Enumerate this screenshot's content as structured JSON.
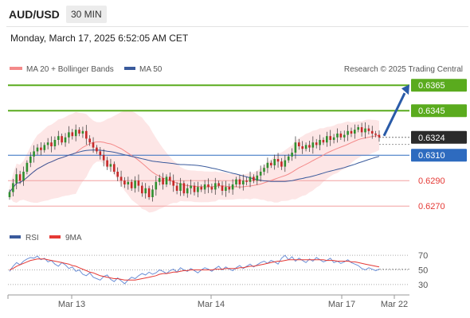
{
  "header": {
    "pair": "AUD/USD",
    "timeframe": "30 MIN",
    "timestamp": "Monday, March 17, 2025 6:52:05 AM CET"
  },
  "legend": {
    "ma20": "MA 20 + Bollinger Bands",
    "ma50": "MA 50",
    "rsi": "RSI",
    "rsi_ma": "9MA"
  },
  "credit": "Research © 2025 Trading Central",
  "colors": {
    "up": "#2f8f2f",
    "down": "#c62828",
    "ma20": "#f48a8a",
    "ma50": "#3a5a9c",
    "band": "#fde2e2",
    "green_line": "#5aab1e",
    "blue_line": "#2e6bbf",
    "red_line": "#f2a0a0",
    "current": "#2b2b2b",
    "arrow": "#2a5ba8"
  },
  "chart_data": {
    "type": "candlestick",
    "x_ticks": [
      "Mar 13",
      "Mar 14",
      "Mar 17",
      "Mar 22"
    ],
    "ylim": [
      0.6257,
      0.6372
    ],
    "levels": [
      {
        "value": 0.6365,
        "label": "0.6365",
        "kind": "resistance"
      },
      {
        "value": 0.6345,
        "label": "0.6345",
        "kind": "resistance"
      },
      {
        "value": 0.6324,
        "label": "0.6324",
        "kind": "current"
      },
      {
        "value": 0.631,
        "label": "0.6310",
        "kind": "pivot"
      },
      {
        "value": 0.629,
        "label": "0.6290",
        "kind": "support"
      },
      {
        "value": 0.627,
        "label": "0.6270",
        "kind": "support"
      }
    ],
    "close": [
      0.6281,
      0.6288,
      0.6295,
      0.629,
      0.6297,
      0.6304,
      0.6309,
      0.6313,
      0.6316,
      0.6314,
      0.6318,
      0.632,
      0.6317,
      0.6322,
      0.6325,
      0.632,
      0.6324,
      0.6328,
      0.6325,
      0.633,
      0.6327,
      0.6329,
      0.6323,
      0.632,
      0.6316,
      0.6313,
      0.631,
      0.6306,
      0.6301,
      0.6303,
      0.6297,
      0.6293,
      0.629,
      0.6287,
      0.6289,
      0.6284,
      0.629,
      0.6286,
      0.628,
      0.6284,
      0.6277,
      0.6283,
      0.6289,
      0.6292,
      0.6287,
      0.6293,
      0.629,
      0.6286,
      0.6282,
      0.6288,
      0.628,
      0.6284,
      0.6286,
      0.6281,
      0.6285,
      0.6283,
      0.6287,
      0.6285,
      0.6283,
      0.6288,
      0.6286,
      0.6282,
      0.6285,
      0.6283,
      0.6287,
      0.6291,
      0.6287,
      0.629,
      0.6289,
      0.6293,
      0.629,
      0.6294,
      0.6297,
      0.63,
      0.6304,
      0.6302,
      0.6307,
      0.6305,
      0.6301,
      0.6306,
      0.6309,
      0.6312,
      0.632,
      0.6317,
      0.6315,
      0.6318,
      0.6316,
      0.632,
      0.6318,
      0.6322,
      0.632,
      0.6325,
      0.6322,
      0.6324,
      0.6327,
      0.6324,
      0.6326,
      0.6329,
      0.6327,
      0.633,
      0.6332,
      0.6328,
      0.6331,
      0.6329,
      0.6327,
      0.6326,
      0.6324
    ],
    "rsi": {
      "levels": [
        70,
        50,
        30
      ],
      "ylim": [
        20,
        80
      ],
      "rsi": [
        48,
        55,
        60,
        57,
        62,
        65,
        67,
        66,
        69,
        64,
        66,
        61,
        63,
        58,
        55,
        60,
        57,
        52,
        54,
        48,
        50,
        44,
        42,
        46,
        40,
        38,
        36,
        41,
        43,
        37,
        34,
        39,
        35,
        31,
        36,
        40,
        38,
        42,
        45,
        43,
        47,
        44,
        46,
        50,
        48,
        45,
        49,
        51,
        47,
        53,
        50,
        48,
        52,
        49,
        46,
        50,
        53,
        51,
        48,
        52,
        55,
        50,
        54,
        51,
        49,
        53,
        56,
        52,
        55,
        58,
        54,
        57,
        60,
        62,
        59,
        63,
        61,
        58,
        66,
        70,
        64,
        68,
        62,
        66,
        63,
        60,
        65,
        62,
        67,
        64,
        61,
        63,
        66,
        60,
        62,
        59,
        61,
        64,
        60,
        58,
        56,
        52,
        50,
        53,
        51,
        49,
        51
      ],
      "ma": [
        50,
        52,
        55,
        57,
        59,
        61,
        63,
        64,
        65,
        65,
        65,
        64,
        63,
        62,
        61,
        60,
        59,
        58,
        56,
        55,
        53,
        51,
        49,
        47,
        46,
        44,
        42,
        41,
        40,
        39,
        38,
        38,
        37,
        36,
        36,
        36,
        36,
        37,
        38,
        39,
        40,
        41,
        42,
        44,
        45,
        45,
        46,
        47,
        47,
        48,
        49,
        49,
        50,
        50,
        50,
        50,
        50,
        50,
        50,
        51,
        51,
        51,
        52,
        52,
        52,
        52,
        53,
        53,
        54,
        55,
        55,
        56,
        57,
        58,
        59,
        60,
        61,
        62,
        62,
        63,
        64,
        64,
        64,
        64,
        64,
        64,
        64,
        64,
        64,
        64,
        64,
        63,
        63,
        63,
        62,
        62,
        62,
        62,
        61,
        61,
        60,
        59,
        58,
        57,
        56,
        55,
        54
      ]
    }
  }
}
